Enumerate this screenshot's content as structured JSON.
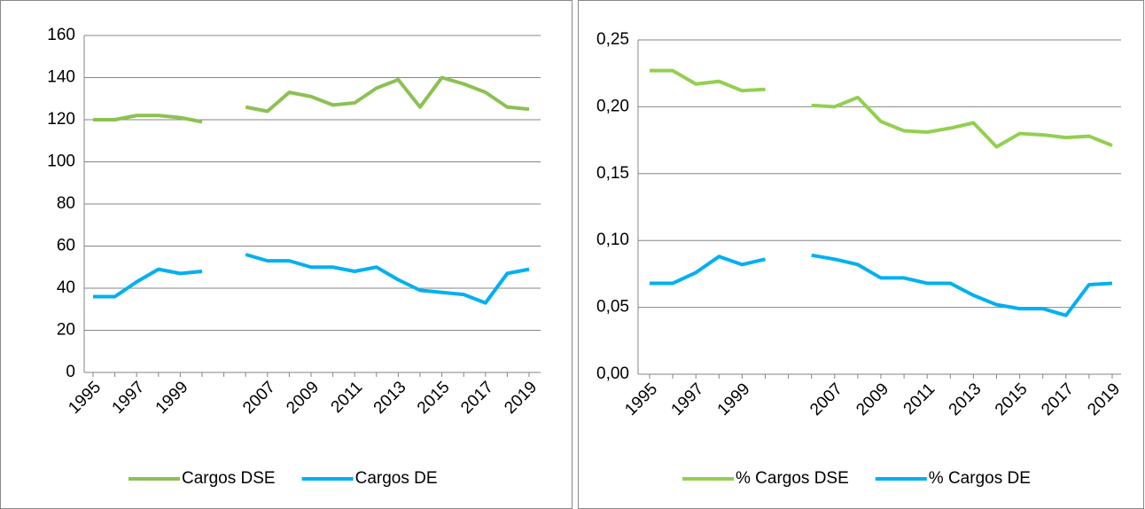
{
  "chart_data": [
    {
      "type": "line",
      "categories": [
        "1995",
        null,
        "1997",
        null,
        "1999",
        null,
        null,
        null,
        "2007",
        null,
        "2009",
        null,
        "2011",
        null,
        "2013",
        null,
        "2015",
        null,
        "2017",
        null,
        "2019"
      ],
      "series": [
        {
          "name": "Cargos DSE",
          "color": "#8cc152",
          "values": [
            120,
            120,
            122,
            122,
            121,
            119,
            null,
            126,
            124,
            133,
            131,
            127,
            128,
            135,
            139,
            126,
            140,
            137,
            133,
            126,
            125
          ]
        },
        {
          "name": "Cargos DE",
          "color": "#00b0f0",
          "values": [
            36,
            36,
            43,
            49,
            47,
            48,
            null,
            56,
            53,
            53,
            50,
            50,
            48,
            50,
            44,
            39,
            38,
            37,
            33,
            47,
            49
          ]
        }
      ],
      "ylim": [
        0,
        160
      ],
      "yticks": [
        0,
        20,
        40,
        60,
        80,
        100,
        120,
        140,
        160
      ],
      "grid": true,
      "legend": "bottom"
    },
    {
      "type": "line",
      "categories": [
        "1995",
        null,
        "1997",
        null,
        "1999",
        null,
        null,
        null,
        "2007",
        null,
        "2009",
        null,
        "2011",
        null,
        "2013",
        null,
        "2015",
        null,
        "2017",
        null,
        "2019"
      ],
      "series": [
        {
          "name": "% Cargos DSE",
          "color": "#92d050",
          "values": [
            0.227,
            0.227,
            0.217,
            0.219,
            0.212,
            0.213,
            null,
            0.201,
            0.2,
            0.207,
            0.189,
            0.182,
            0.181,
            0.184,
            0.188,
            0.17,
            0.18,
            0.179,
            0.177,
            0.178,
            0.171
          ]
        },
        {
          "name": "% Cargos DE",
          "color": "#00b0f0",
          "values": [
            0.068,
            0.068,
            0.076,
            0.088,
            0.082,
            0.086,
            null,
            0.089,
            0.086,
            0.082,
            0.072,
            0.072,
            0.068,
            0.068,
            0.059,
            0.052,
            0.049,
            0.049,
            0.044,
            0.067,
            0.068
          ]
        }
      ],
      "ylim": [
        0,
        0.25
      ],
      "yticks": [
        {
          "value": 0,
          "label": "0,00"
        },
        {
          "value": 0.05,
          "label": "0,05"
        },
        {
          "value": 0.1,
          "label": "0,10"
        },
        {
          "value": 0.15,
          "label": "0,15"
        },
        {
          "value": 0.2,
          "label": "0,20"
        },
        {
          "value": 0.25,
          "label": "0,25"
        }
      ],
      "grid": true,
      "legend": "bottom"
    }
  ]
}
